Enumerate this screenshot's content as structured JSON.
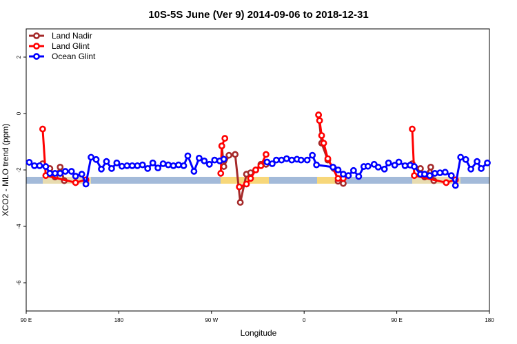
{
  "chart_data": {
    "type": "line",
    "title": "10S-5S June (Ver 9)   2014-09-06 to 2018-12-31",
    "xlabel": "Longitude",
    "ylabel": "XCO2 - MLO trend (ppm)",
    "xlim": [
      90,
      540
    ],
    "ylim": [
      -7,
      3
    ],
    "xticks": [
      {
        "value": 90,
        "label": "90 E"
      },
      180,
      {
        "value": 270,
        "label": "90 W"
      },
      {
        "value": 360,
        "label": "0"
      },
      {
        "value": 450,
        "label": "90 E"
      },
      {
        "value": 540,
        "label": "180"
      }
    ],
    "yticks": [
      -6,
      -4,
      -2,
      0,
      2
    ],
    "grid": false,
    "legend": "upper left",
    "series": [
      {
        "name": "Land Nadir",
        "color": "#a52a2a",
        "x": [
          106,
          113,
          118,
          123,
          127,
          null,
          280,
          282,
          287,
          293,
          298,
          304,
          308,
          313,
          318,
          323,
          null,
          374,
          377,
          383,
          389,
          393,
          398,
          null,
          465,
          473,
          477,
          483,
          486
        ],
        "values": [
          -1.78,
          -1.95,
          -2.25,
          -1.9,
          -2.38,
          null,
          -1.15,
          -1.88,
          -1.48,
          -1.45,
          -3.15,
          -2.15,
          -2.1,
          -2.0,
          -1.8,
          -1.8,
          null,
          -0.05,
          -1.05,
          -1.65,
          -1.95,
          -2.4,
          -2.48,
          null,
          -1.78,
          -1.95,
          -2.25,
          -1.9,
          -2.38
        ]
      },
      {
        "name": "Land Glint",
        "color": "#ff0000",
        "x": [
          106,
          109,
          138,
          148,
          null,
          279,
          280,
          283,
          null,
          297,
          304,
          308,
          313,
          318,
          323,
          null,
          374,
          375,
          377,
          379,
          383,
          393,
          398,
          null,
          465,
          467,
          498,
          507
        ],
        "values": [
          -0.55,
          -2.2,
          -2.45,
          -2.35,
          null,
          -2.12,
          -1.15,
          -0.88,
          null,
          -2.6,
          -2.5,
          -2.3,
          -2.0,
          -1.85,
          -1.45,
          null,
          -0.05,
          -0.25,
          -0.78,
          -1.05,
          -1.6,
          -2.3,
          -2.3,
          null,
          -0.55,
          -2.2,
          -2.45,
          -2.35
        ]
      },
      {
        "name": "Ocean Glint",
        "color": "#0000ff",
        "x": [
          93,
          98,
          103,
          109,
          113,
          118,
          123,
          128,
          134,
          138,
          144,
          148,
          153,
          158,
          163,
          168,
          173,
          178,
          183,
          188,
          193,
          198,
          203,
          208,
          213,
          218,
          223,
          228,
          233,
          238,
          243,
          247,
          253,
          258,
          263,
          268,
          273,
          278,
          282,
          null,
          324,
          329,
          333,
          338,
          343,
          348,
          353,
          357,
          363,
          368,
          372,
          388,
          393,
          398,
          403,
          408,
          413,
          418,
          422,
          428,
          432,
          438,
          442,
          448,
          452,
          458,
          463,
          467,
          473,
          477,
          482,
          487,
          492,
          497,
          503,
          507,
          512,
          517,
          522,
          528,
          532,
          538
        ],
        "values": [
          -1.73,
          -1.85,
          -1.85,
          -1.88,
          -2.12,
          -2.12,
          -2.12,
          -2.05,
          -2.05,
          -2.22,
          -2.15,
          -2.5,
          -1.55,
          -1.63,
          -1.97,
          -1.7,
          -1.95,
          -1.75,
          -1.87,
          -1.85,
          -1.85,
          -1.85,
          -1.82,
          -1.95,
          -1.75,
          -1.93,
          -1.78,
          -1.82,
          -1.85,
          -1.82,
          -1.85,
          -1.5,
          -2.05,
          -1.58,
          -1.68,
          -1.8,
          -1.65,
          -1.68,
          -1.62,
          null,
          -1.72,
          -1.78,
          -1.65,
          -1.65,
          -1.6,
          -1.65,
          -1.62,
          -1.65,
          -1.65,
          -1.48,
          -1.82,
          -1.9,
          -2.0,
          -2.15,
          -2.2,
          -2.02,
          -2.23,
          -1.88,
          -1.87,
          -1.8,
          -1.9,
          -1.97,
          -1.75,
          -1.83,
          -1.72,
          -1.85,
          -1.83,
          -1.88,
          -2.15,
          -2.15,
          -2.2,
          -2.12,
          -2.1,
          -2.08,
          -2.2,
          -2.55,
          -1.55,
          -1.63,
          -1.97,
          -1.7,
          -1.95,
          -1.75
        ]
      }
    ]
  }
}
